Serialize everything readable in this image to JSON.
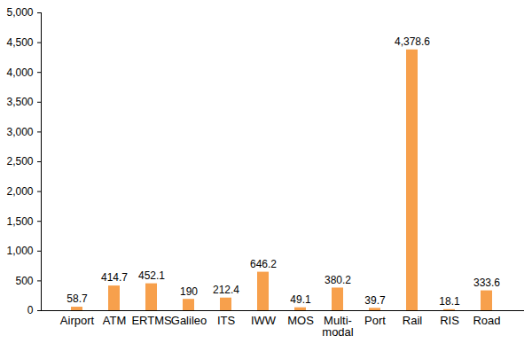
{
  "chart_data": {
    "type": "bar",
    "categories": [
      "Airport",
      "ATM",
      "ERTMS",
      "Galileo",
      "ITS",
      "IWW",
      "MOS",
      "Multi-\nmodal",
      "Port",
      "Rail",
      "RIS",
      "Road"
    ],
    "values": [
      58.7,
      414.7,
      452.1,
      190,
      212.4,
      646.2,
      49.1,
      380.2,
      39.7,
      4378.6,
      18.1,
      333.6
    ],
    "value_labels": [
      "58.7",
      "414.7",
      "452.1",
      "190",
      "212.4",
      "646.2",
      "49.1",
      "380.2",
      "39.7",
      "4,378.6",
      "18.1",
      "333.6"
    ],
    "color": "#f7a04c",
    "ylim": [
      0,
      5000
    ],
    "yticks": [
      0,
      500,
      {
        "value": 1000,
        "label": "1,000"
      },
      {
        "value": 1500,
        "label": "1,500"
      },
      {
        "value": 2000,
        "label": "2,000"
      },
      {
        "value": 2500,
        "label": "2,500"
      },
      {
        "value": 3000,
        "label": "3,000"
      },
      {
        "value": 3500,
        "label": "3,500"
      },
      {
        "value": 4000,
        "label": "4,000"
      },
      {
        "value": 4500,
        "label": "4,500"
      },
      {
        "value": 5000,
        "label": "5,000"
      }
    ],
    "grid": false,
    "data_labels": true
  }
}
